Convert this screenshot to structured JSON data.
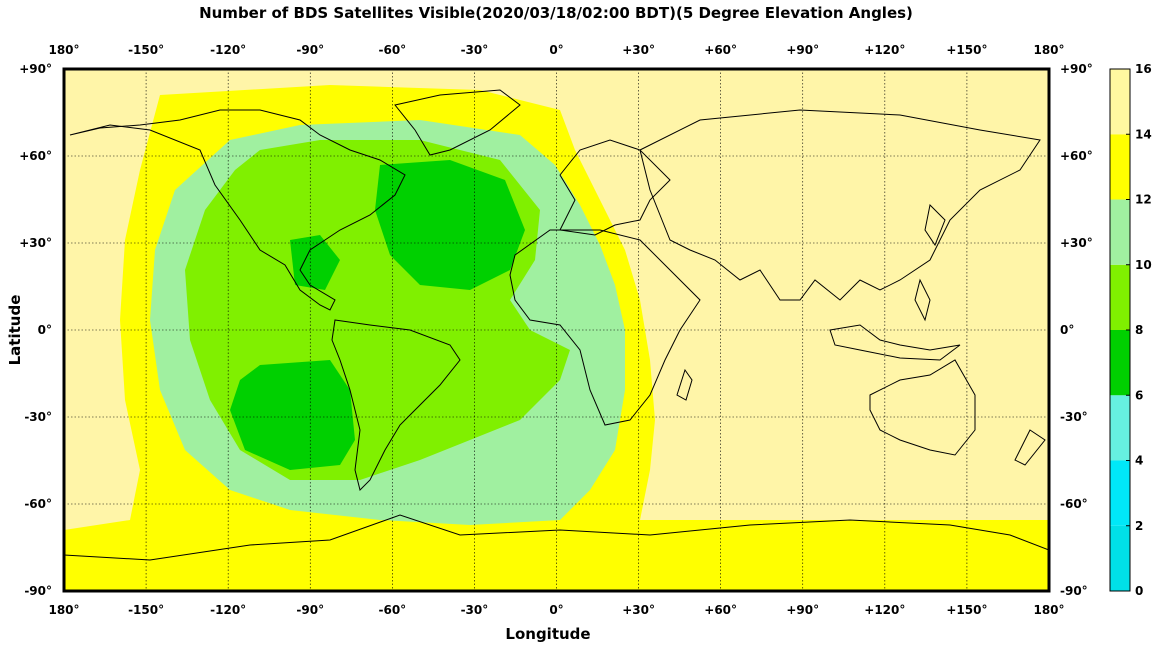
{
  "title": "Number of BDS Satellites Visible(2020/03/18/02:00 BDT)(5 Degree Elevation Angles)",
  "axes": {
    "xlabel": "Longitude",
    "ylabel": "Latitude",
    "lon_ticks": [
      "180°",
      "-150°",
      "-120°",
      "-90°",
      "-60°",
      "-30°",
      "0°",
      "+30°",
      "+60°",
      "+90°",
      "+120°",
      "+150°",
      "180°"
    ],
    "lat_ticks": [
      "+90°",
      "+60°",
      "+30°",
      "0°",
      "-30°",
      "-60°",
      "-90°"
    ],
    "lon_range": [
      -180,
      180
    ],
    "lat_range": [
      -90,
      90
    ]
  },
  "colorbar": {
    "ticks": [
      "0",
      "2",
      "4",
      "6",
      "8",
      "10",
      "12",
      "14",
      "16"
    ],
    "bands": [
      {
        "range": [
          0,
          2
        ],
        "color": "#00e0e8"
      },
      {
        "range": [
          2,
          4
        ],
        "color": "#00e8f8"
      },
      {
        "range": [
          4,
          6
        ],
        "color": "#66f0e0"
      },
      {
        "range": [
          6,
          8
        ],
        "color": "#00d000"
      },
      {
        "range": [
          8,
          10
        ],
        "color": "#80f000"
      },
      {
        "range": [
          10,
          12
        ],
        "color": "#a0f0a0"
      },
      {
        "range": [
          12,
          14
        ],
        "color": "#ffff00"
      },
      {
        "range": [
          14,
          16
        ],
        "color": "#fff8a0"
      }
    ]
  },
  "colors": {
    "background": "#fff5a8",
    "yellow": "#ffff00",
    "light_green": "#a0f0a0",
    "green": "#80f000",
    "dark_green": "#00d000"
  }
}
